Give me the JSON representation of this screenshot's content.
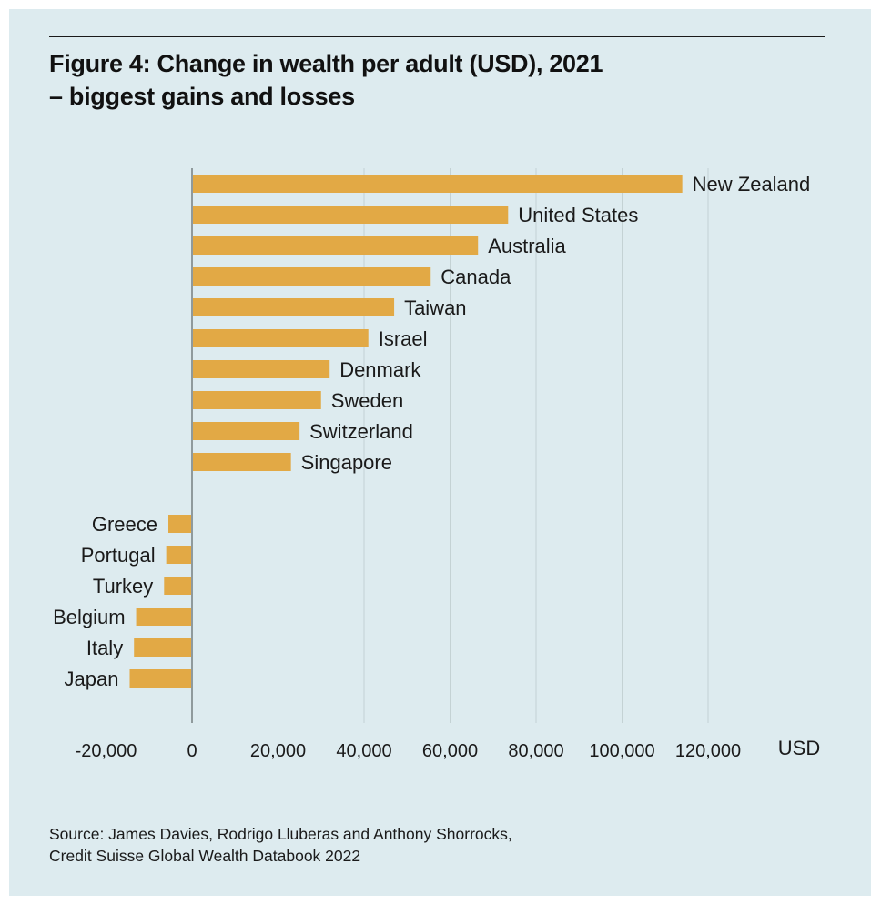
{
  "title": {
    "line1": "Figure 4: Change in wealth per adult (USD), 2021",
    "line2": "– biggest gains and losses"
  },
  "source": {
    "line1": "Source: James Davies, Rodrigo Lluberas and Anthony Shorrocks,",
    "line2": "Credit Suisse Global Wealth Databook 2022"
  },
  "chart_data": {
    "type": "bar",
    "orientation": "horizontal",
    "title": "Figure 4: Change in wealth per adult (USD), 2021 – biggest gains and losses",
    "xlabel": "USD",
    "ylabel": "",
    "xlim": [
      -20000,
      140000
    ],
    "xticks": [
      -20000,
      0,
      20000,
      40000,
      60000,
      80000,
      100000,
      120000
    ],
    "xtick_labels": [
      "-20,000",
      "0",
      "20,000",
      "40,000",
      "60,000",
      "80,000",
      "100,000",
      "120,000"
    ],
    "grid": "vertical",
    "bar_color": "#e2a945",
    "categories": [
      "New Zealand",
      "United States",
      "Australia",
      "Canada",
      "Taiwan",
      "Israel",
      "Denmark",
      "Sweden",
      "Switzerland",
      "Singapore",
      "Greece",
      "Portugal",
      "Turkey",
      "Belgium",
      "Italy",
      "Japan"
    ],
    "values": [
      114000,
      73500,
      66500,
      55500,
      47000,
      41000,
      32000,
      30000,
      25000,
      23000,
      -5500,
      -6000,
      -6500,
      -13000,
      -13500,
      -14500
    ],
    "groups": [
      "gains",
      "gains",
      "gains",
      "gains",
      "gains",
      "gains",
      "gains",
      "gains",
      "gains",
      "gains",
      "losses",
      "losses",
      "losses",
      "losses",
      "losses",
      "losses"
    ]
  }
}
